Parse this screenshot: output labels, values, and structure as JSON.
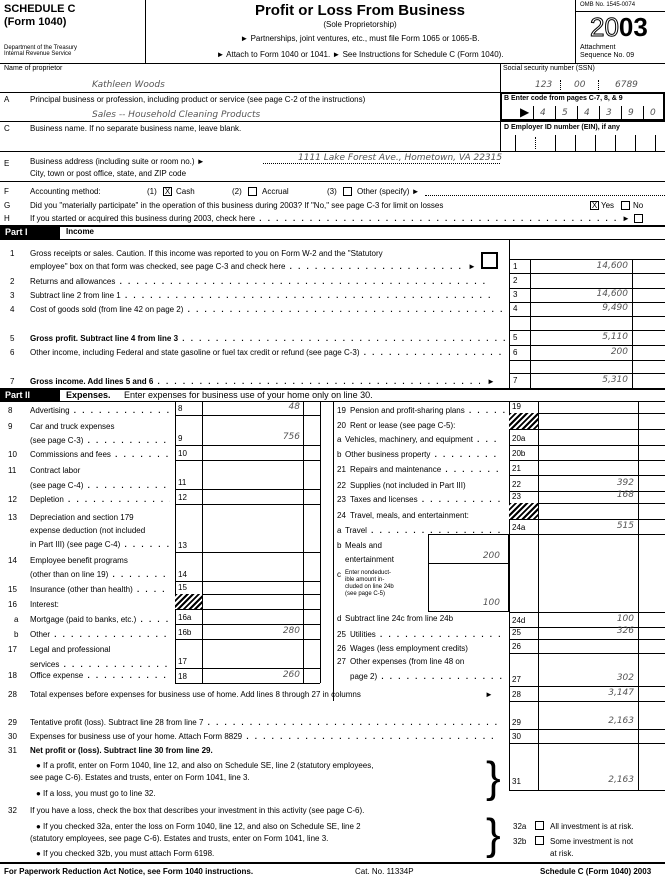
{
  "header": {
    "form_name": "SCHEDULE C",
    "form_sub": "(Form 1040)",
    "dept": "Department of the Treasury",
    "irs": "Internal Revenue Service",
    "title": "Profit or Loss From Business",
    "subtitle": "(Sole Proprietorship)",
    "note1": "► Partnerships, joint ventures, etc., must file Form 1065 or 1065-B.",
    "note2": "► Attach to Form 1040 or 1041.   ► See Instructions for Schedule C (Form 1040).",
    "omb": "OMB No. 1545-0074",
    "year_light": "20",
    "year_bold": "03",
    "attachment": "Attachment",
    "sequence": "Sequence No. 09"
  },
  "proprietor": {
    "label": "Name of proprietor",
    "value": "Kathleen Woods"
  },
  "ssn": {
    "label": "Social security number (SSN)",
    "part1": "123",
    "part2": "00",
    "part3": "6789"
  },
  "lineA": {
    "letter": "A",
    "label": "Principal business or profession, including product or service (see page C-2 of the instructions)",
    "value": "Sales -- Household Cleaning Products"
  },
  "lineB": {
    "label": "B  Enter code from pages C-7, 8, & 9",
    "digits": [
      "4",
      "5",
      "4",
      "3",
      "9",
      "0"
    ]
  },
  "lineC": {
    "letter": "C",
    "label": "Business name. If no separate business name, leave blank."
  },
  "lineD": {
    "label": "D  Employer ID number (EIN), if any"
  },
  "lineE": {
    "letter": "E",
    "label": "Business address (including suite or room no.) ►",
    "label2": "City, town or post office, state, and ZIP code",
    "value": "1111 Lake Forest Ave., Hometown, VA 22315"
  },
  "lineF": {
    "letter": "F",
    "label": "Accounting method:",
    "opt1": "(1)",
    "cash": "Cash",
    "opt2": "(2)",
    "accrual": "Accrual",
    "opt3": "(3)",
    "other": "Other (specify) ►",
    "selected": "Cash",
    "mark": "X"
  },
  "lineG": {
    "letter": "G",
    "label": "Did you \"materially participate\" in the operation of this business during 2003? If \"No,\" see page C-3 for limit on losses",
    "yes": "Yes",
    "no": "No",
    "answer": "Yes",
    "mark": "X"
  },
  "lineH": {
    "letter": "H",
    "label": "If you started or acquired this business during 2003, check here",
    "arrow": "►"
  },
  "part1": {
    "tag": "Part I",
    "title": "Income",
    "lines": [
      {
        "num": "1",
        "text": "Gross receipts or sales. Caution. If this income was reported to you on Form W-2 and the \"Statutory",
        "text2": "employee\" box on that form was checked, see page C-3 and check here",
        "arrow": "►",
        "box": "1",
        "amount": "14,600"
      },
      {
        "num": "2",
        "text": "Returns and allowances",
        "box": "2",
        "amount": ""
      },
      {
        "num": "3",
        "text": "Subtract line 2 from line 1",
        "box": "3",
        "amount": "14,600"
      },
      {
        "num": "4",
        "text": "Cost of goods sold (from line 42 on page 2)",
        "box": "4",
        "amount": "9,490"
      },
      {
        "num": "5",
        "text": "Gross profit. Subtract line 4 from line 3",
        "box": "5",
        "amount": "5,110"
      },
      {
        "num": "6",
        "text": "Other income, including Federal and state gasoline or fuel tax credit or refund (see page C-3)",
        "box": "6",
        "amount": "200"
      },
      {
        "num": "7",
        "text": "Gross income. Add lines 5 and 6",
        "arrow": "►",
        "box": "7",
        "amount": "5,310"
      }
    ]
  },
  "part2": {
    "tag": "Part II",
    "title": "Expenses.",
    "subtitle": "Enter expenses for business use of your home only on line 30.",
    "left": [
      {
        "num": "8",
        "text": "Advertising",
        "box": "8",
        "amount": "48"
      },
      {
        "num": "9",
        "text": "Car and truck expenses",
        "text2": "(see page C-3)",
        "box": "9",
        "amount": "756"
      },
      {
        "num": "10",
        "text": "Commissions and fees",
        "box": "10",
        "amount": ""
      },
      {
        "num": "11",
        "text": "Contract labor",
        "text2": "(see page C-4)",
        "box": "11",
        "amount": ""
      },
      {
        "num": "12",
        "text": "Depletion",
        "box": "12",
        "amount": ""
      },
      {
        "num": "13",
        "text": "Depreciation and section 179",
        "text2": "expense deduction (not included",
        "text3": "in Part III) (see page C-4)",
        "box": "13",
        "amount": ""
      },
      {
        "num": "14",
        "text": "Employee benefit programs",
        "text2": "(other than on line 19)",
        "box": "14",
        "amount": ""
      },
      {
        "num": "15",
        "text": "Insurance (other than health)",
        "box": "15",
        "amount": ""
      },
      {
        "num": "16",
        "text": "Interest:"
      },
      {
        "num": "a",
        "text": "Mortgage (paid to banks, etc.)",
        "box": "16a",
        "amount": ""
      },
      {
        "num": "b",
        "text": "Other",
        "box": "16b",
        "amount": "280"
      },
      {
        "num": "17",
        "text": "Legal and professional",
        "text2": "services",
        "box": "17",
        "amount": ""
      },
      {
        "num": "18",
        "text": "Office expense",
        "box": "18",
        "amount": "260"
      }
    ],
    "right": [
      {
        "num": "19",
        "text": "Pension and profit-sharing plans",
        "box": "19",
        "amount": ""
      },
      {
        "num": "20",
        "text": "Rent or lease (see page C-5):"
      },
      {
        "num": "a",
        "text": "Vehicles, machinery, and equipment",
        "box": "20a",
        "amount": ""
      },
      {
        "num": "b",
        "text": "Other business property",
        "box": "20b",
        "amount": ""
      },
      {
        "num": "21",
        "text": "Repairs and maintenance",
        "box": "21",
        "amount": ""
      },
      {
        "num": "22",
        "text": "Supplies (not included in Part III)",
        "box": "22",
        "amount": "392"
      },
      {
        "num": "23",
        "text": "Taxes and licenses",
        "box": "23",
        "amount": "168"
      },
      {
        "num": "24",
        "text": "Travel, meals, and entertainment:"
      },
      {
        "num": "a",
        "text": "Travel",
        "box": "24a",
        "amount": "515"
      },
      {
        "num": "b",
        "text": "Meals   and",
        "text2": "entertainment",
        "amount": "200"
      },
      {
        "num": "c",
        "text": "Enter nondeduct-",
        "text2": "ible amount in-",
        "text3": "cluded on line 24b",
        "text4": "(see page C-5)",
        "amount": "100"
      },
      {
        "num": "d",
        "text": "Subtract line 24c from line 24b",
        "box": "24d",
        "amount": "100"
      },
      {
        "num": "25",
        "text": "Utilities",
        "box": "25",
        "amount": "326"
      },
      {
        "num": "26",
        "text": "Wages (less employment credits)",
        "box": "26",
        "amount": ""
      },
      {
        "num": "27",
        "text": "Other expenses (from line 48 on",
        "text2": "page 2)",
        "box": "27",
        "amount": "302"
      }
    ]
  },
  "bottom": {
    "l28": {
      "num": "28",
      "text": "Total expenses before expenses for business use of home. Add lines 8 through 27 in columns",
      "arrow": "►",
      "box": "28",
      "amount": "3,147"
    },
    "l29": {
      "num": "29",
      "text": "Tentative profit (loss). Subtract line 28 from line 7",
      "box": "29",
      "amount": "2,163"
    },
    "l30": {
      "num": "30",
      "text": "Expenses for business use of your home. Attach Form 8829",
      "box": "30",
      "amount": ""
    },
    "l31": {
      "num": "31",
      "text": "Net profit or (loss). Subtract line 30 from line 29.",
      "b1": "● If a profit, enter on Form 1040, line 12, and also on Schedule SE, line 2 (statutory employees,",
      "b1b": "see page C-6). Estates and trusts, enter on Form 1041, line 3.",
      "b2": "● If a loss, you must go to line 32.",
      "box": "31",
      "amount": "2,163"
    },
    "l32": {
      "num": "32",
      "text": "If you have a loss, check the box that describes your investment in this activity (see page C-6).",
      "b1": "● If you checked 32a, enter the loss on Form 1040, line 12, and also on Schedule SE, line 2",
      "b1b": "(statutory employees, see page C-6). Estates and trusts, enter on Form 1041, line 3.",
      "b2": "● If you checked 32b, you must attach Form 6198.",
      "a_label": "32a",
      "a_text": "All investment is at risk.",
      "b_label": "32b",
      "b_text": "Some investment is not",
      "b_text2": "at risk."
    }
  },
  "footer": {
    "left": "For Paperwork Reduction Act Notice, see Form 1040 instructions.",
    "cat": "Cat. No. 11334P",
    "right": "Schedule C (Form 1040) 2003"
  }
}
